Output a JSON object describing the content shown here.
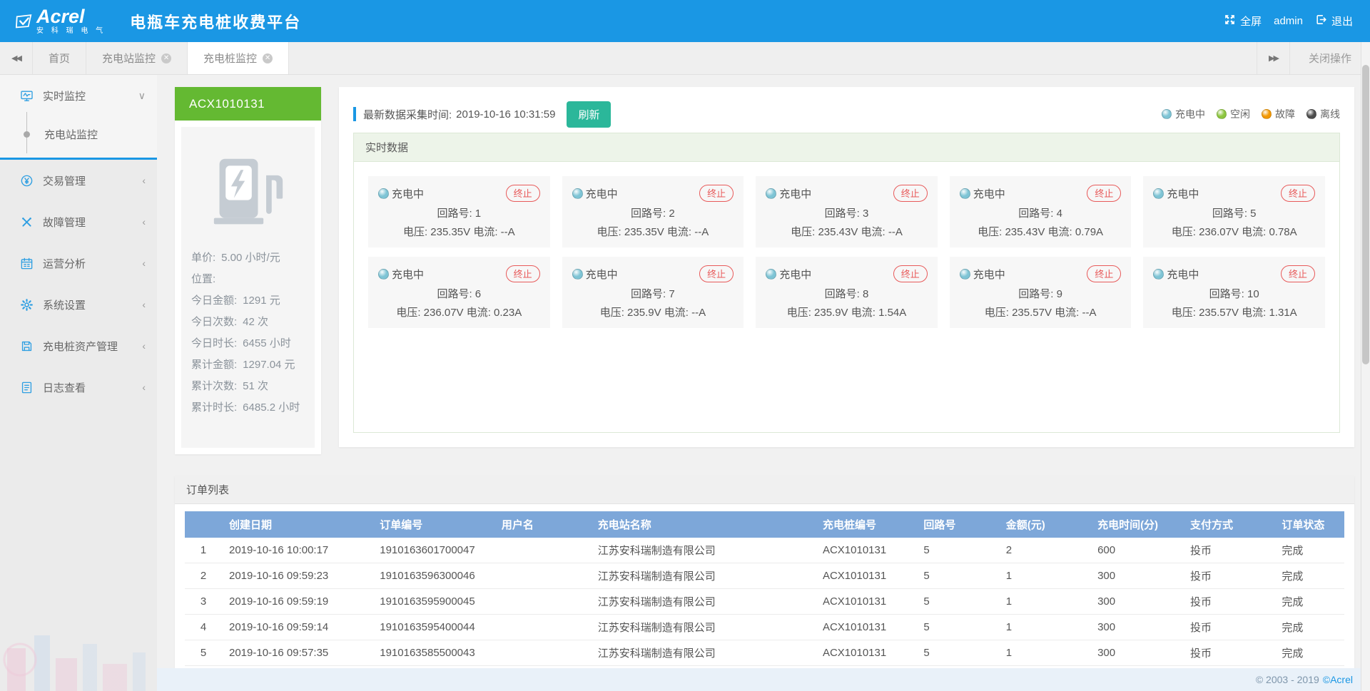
{
  "header": {
    "logo": {
      "brand": "Acrel",
      "sub_brand": "安 科 瑞 电 气"
    },
    "title": "电瓶车充电桩收费平台",
    "fullscreen": "全屏",
    "username": "admin",
    "logout": "退出"
  },
  "tabbar": {
    "tabs": [
      {
        "name": "home",
        "label": "首页",
        "closable": false,
        "active": false
      },
      {
        "name": "station-monitor",
        "label": "充电站监控",
        "closable": true,
        "active": false
      },
      {
        "name": "pile-monitor",
        "label": "充电桩监控",
        "closable": true,
        "active": true
      }
    ],
    "close_ops": "关闭操作"
  },
  "sidebar": {
    "items": [
      {
        "name": "realtime-monitor",
        "label": "实时监控",
        "icon": "monitor-icon",
        "state": "expanded",
        "children": [
          {
            "name": "station-monitor",
            "label": "充电站监控",
            "active": true
          }
        ]
      },
      {
        "name": "transaction-mgmt",
        "label": "交易管理",
        "icon": "transaction-icon",
        "state": "collapsed"
      },
      {
        "name": "fault-mgmt",
        "label": "故障管理",
        "icon": "fault-icon",
        "state": "collapsed"
      },
      {
        "name": "operation-analysis",
        "label": "运营分析",
        "icon": "calendar-icon",
        "state": "collapsed"
      },
      {
        "name": "system-settings",
        "label": "系统设置",
        "icon": "gear-icon",
        "state": "collapsed"
      },
      {
        "name": "pile-asset-mgmt",
        "label": "充电桩资产管理",
        "icon": "disk-icon",
        "state": "collapsed"
      },
      {
        "name": "log-view",
        "label": "日志查看",
        "icon": "log-icon",
        "state": "collapsed"
      }
    ]
  },
  "device": {
    "id": "ACX1010131",
    "stats": [
      {
        "label": "单价:",
        "value": "5.00 小时/元"
      },
      {
        "label": "位置:",
        "value": ""
      },
      {
        "label": "今日金额:",
        "value": "1291 元"
      },
      {
        "label": "今日次数:",
        "value": "42 次"
      },
      {
        "label": "今日时长:",
        "value": "6455 小时"
      },
      {
        "label": "累计金额:",
        "value": "1297.04 元"
      },
      {
        "label": "累计次数:",
        "value": "51 次"
      },
      {
        "label": "累计时长:",
        "value": "6485.2 小时"
      }
    ]
  },
  "monitor": {
    "collect_label": "最新数据采集时间:",
    "collect_time": "2019-10-16 10:31:59",
    "refresh": "刷新",
    "legend": [
      {
        "name": "charging",
        "label": "充电中",
        "color": "#7ec4d5"
      },
      {
        "name": "idle",
        "label": "空闲",
        "color": "#8dc63f"
      },
      {
        "name": "fault",
        "label": "故障",
        "color": "#f39800"
      },
      {
        "name": "offline",
        "label": "离线",
        "color": "#4d4d4d"
      }
    ],
    "panel_title": "实时数据",
    "status_label": "充电中",
    "status_color": "#7ec4d5",
    "terminate": "终止",
    "circuit_prefix": "回路号:",
    "voltage_prefix": "电压:",
    "current_prefix": "电流:",
    "circuits": [
      {
        "no": "1",
        "voltage": "235.35V",
        "current": "--A"
      },
      {
        "no": "2",
        "voltage": "235.35V",
        "current": "--A"
      },
      {
        "no": "3",
        "voltage": "235.43V",
        "current": "--A"
      },
      {
        "no": "4",
        "voltage": "235.43V",
        "current": "0.79A"
      },
      {
        "no": "5",
        "voltage": "236.07V",
        "current": "0.78A"
      },
      {
        "no": "6",
        "voltage": "236.07V",
        "current": "0.23A"
      },
      {
        "no": "7",
        "voltage": "235.9V",
        "current": "--A"
      },
      {
        "no": "8",
        "voltage": "235.9V",
        "current": "1.54A"
      },
      {
        "no": "9",
        "voltage": "235.57V",
        "current": "--A"
      },
      {
        "no": "10",
        "voltage": "235.57V",
        "current": "1.31A"
      }
    ]
  },
  "orders": {
    "title": "订单列表",
    "columns": [
      "",
      "创建日期",
      "订单编号",
      "用户名",
      "充电站名称",
      "充电桩编号",
      "回路号",
      "金额(元)",
      "充电时间(分)",
      "支付方式",
      "订单状态"
    ],
    "col_widths": [
      "3.2%",
      "13%",
      "10.5%",
      "8.3%",
      "19.4%",
      "8.7%",
      "7.1%",
      "7.9%",
      "8%",
      "7.9%",
      "6%"
    ],
    "rows": [
      [
        "1",
        "2019-10-16 10:00:17",
        "1910163601700047",
        "",
        "江苏安科瑞制造有限公司",
        "ACX1010131",
        "5",
        "2",
        "600",
        "投币",
        "完成"
      ],
      [
        "2",
        "2019-10-16 09:59:23",
        "1910163596300046",
        "",
        "江苏安科瑞制造有限公司",
        "ACX1010131",
        "5",
        "1",
        "300",
        "投币",
        "完成"
      ],
      [
        "3",
        "2019-10-16 09:59:19",
        "1910163595900045",
        "",
        "江苏安科瑞制造有限公司",
        "ACX1010131",
        "5",
        "1",
        "300",
        "投币",
        "完成"
      ],
      [
        "4",
        "2019-10-16 09:59:14",
        "1910163595400044",
        "",
        "江苏安科瑞制造有限公司",
        "ACX1010131",
        "5",
        "1",
        "300",
        "投币",
        "完成"
      ],
      [
        "5",
        "2019-10-16 09:57:35",
        "1910163585500043",
        "",
        "江苏安科瑞制造有限公司",
        "ACX1010131",
        "5",
        "1",
        "300",
        "投币",
        "完成"
      ]
    ]
  },
  "footer": {
    "copyright": "© 2003 - 2019",
    "brand": "©Acrel"
  }
}
